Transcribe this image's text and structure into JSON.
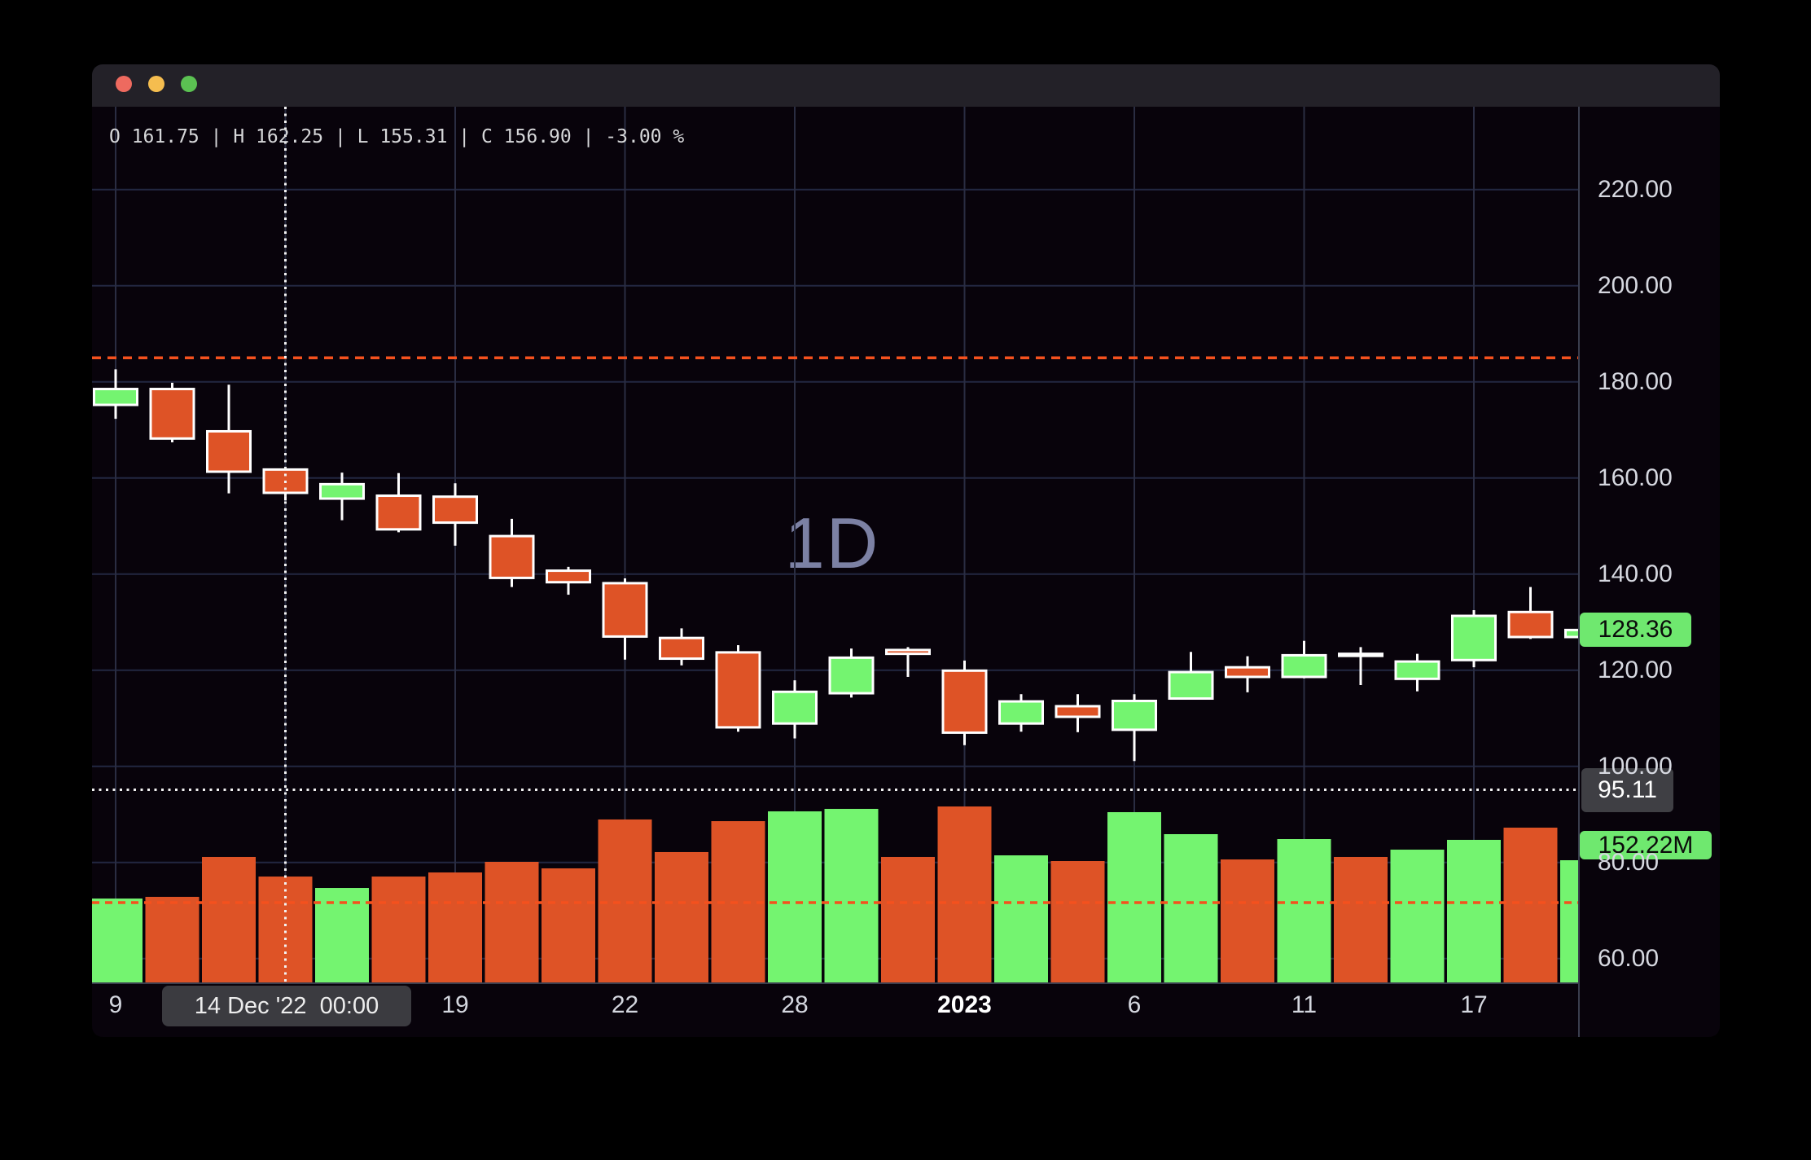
{
  "window": {
    "traffic_lights": [
      {
        "name": "close",
        "color": "#ee6a5f"
      },
      {
        "name": "minimize",
        "color": "#f5bd4f"
      },
      {
        "name": "zoom",
        "color": "#5bc152"
      }
    ]
  },
  "readout": {
    "text": "O 161.75 | H 162.25 | L 155.31 | C 156.90 | -3.00 %",
    "open": "161.75",
    "high": "162.25",
    "low": "155.31",
    "close": "156.90",
    "change_pct": "-3.00 %"
  },
  "chart_data": {
    "type": "candlestick",
    "interval_watermark": "1D",
    "grid": true,
    "y_axis": {
      "min": 60,
      "max": 220,
      "step": 20,
      "labels": [
        "220.00",
        "200.00",
        "180.00",
        "160.00",
        "140.00",
        "120.00",
        "100.00",
        "80.00",
        "60.00"
      ]
    },
    "x_axis": {
      "ticks": [
        {
          "bar": 0,
          "label": "9",
          "bold": false
        },
        {
          "bar": 6,
          "label": "19",
          "bold": false
        },
        {
          "bar": 9,
          "label": "22",
          "bold": false
        },
        {
          "bar": 12,
          "label": "28",
          "bold": false
        },
        {
          "bar": 15,
          "label": "2023",
          "bold": true
        },
        {
          "bar": 18,
          "label": "6",
          "bold": false
        },
        {
          "bar": 21,
          "label": "11",
          "bold": false
        },
        {
          "bar": 24,
          "label": "17",
          "bold": false
        }
      ],
      "gridline_bars": [
        0,
        3,
        6,
        9,
        12,
        15,
        18,
        21,
        24
      ]
    },
    "candles": [
      {
        "date": "9 Dec '22",
        "o": 175.2,
        "h": 182.6,
        "l": 172.3,
        "c": 178.5,
        "dir": "up",
        "vol_m": 104.5
      },
      {
        "date": "12 Dec '22",
        "o": 178.5,
        "h": 179.8,
        "l": 167.4,
        "c": 168.2,
        "dir": "down",
        "vol_m": 106.6
      },
      {
        "date": "13 Dec '22",
        "o": 169.7,
        "h": 179.4,
        "l": 156.8,
        "c": 161.3,
        "dir": "down",
        "vol_m": 156.3
      },
      {
        "date": "14 Dec '22",
        "o": 161.75,
        "h": 162.25,
        "l": 155.31,
        "c": 156.9,
        "dir": "down",
        "vol_m": 131.9
      },
      {
        "date": "15 Dec '22",
        "o": 155.7,
        "h": 161.1,
        "l": 151.2,
        "c": 158.7,
        "dir": "up",
        "vol_m": 117.7
      },
      {
        "date": "16 Dec '22",
        "o": 156.3,
        "h": 161.0,
        "l": 148.7,
        "c": 149.3,
        "dir": "down",
        "vol_m": 131.9
      },
      {
        "date": "19 Dec '22",
        "o": 156.1,
        "h": 158.9,
        "l": 145.9,
        "c": 150.7,
        "dir": "down",
        "vol_m": 137.0
      },
      {
        "date": "20 Dec '22",
        "o": 147.9,
        "h": 151.5,
        "l": 137.3,
        "c": 139.2,
        "dir": "down",
        "vol_m": 150.2
      },
      {
        "date": "21 Dec '22",
        "o": 140.7,
        "h": 141.5,
        "l": 135.7,
        "c": 138.3,
        "dir": "down",
        "vol_m": 142.1
      },
      {
        "date": "22 Dec '22",
        "o": 138.1,
        "h": 139.1,
        "l": 122.2,
        "c": 127.0,
        "dir": "down",
        "vol_m": 203.0
      },
      {
        "date": "23 Dec '22",
        "o": 126.7,
        "h": 128.7,
        "l": 121.0,
        "c": 122.4,
        "dir": "down",
        "vol_m": 162.4
      },
      {
        "date": "27 Dec '22",
        "o": 123.7,
        "h": 125.2,
        "l": 107.2,
        "c": 108.1,
        "dir": "down",
        "vol_m": 200.9
      },
      {
        "date": "28 Dec '22",
        "o": 108.9,
        "h": 117.9,
        "l": 105.8,
        "c": 115.5,
        "dir": "up",
        "vol_m": 213.1
      },
      {
        "date": "29 Dec '22",
        "o": 115.2,
        "h": 124.5,
        "l": 114.3,
        "c": 122.6,
        "dir": "up",
        "vol_m": 216.2
      },
      {
        "date": "30 Dec '22",
        "o": 124.2,
        "h": 124.8,
        "l": 118.6,
        "c": 123.4,
        "dir": "down",
        "vol_m": 156.3
      },
      {
        "date": "3 Jan '23",
        "o": 119.9,
        "h": 122.0,
        "l": 104.4,
        "c": 107.0,
        "dir": "down",
        "vol_m": 219.2
      },
      {
        "date": "4 Jan '23",
        "o": 108.9,
        "h": 115.0,
        "l": 107.2,
        "c": 113.5,
        "dir": "up",
        "vol_m": 158.3
      },
      {
        "date": "5 Jan '23",
        "o": 112.5,
        "h": 115.0,
        "l": 107.1,
        "c": 110.3,
        "dir": "down",
        "vol_m": 151.2
      },
      {
        "date": "6 Jan '23",
        "o": 107.6,
        "h": 115.0,
        "l": 101.1,
        "c": 113.6,
        "dir": "up",
        "vol_m": 212.1
      },
      {
        "date": "9 Jan '23",
        "o": 114.1,
        "h": 123.8,
        "l": 113.9,
        "c": 119.6,
        "dir": "up",
        "vol_m": 184.7
      },
      {
        "date": "10 Jan '23",
        "o": 120.6,
        "h": 122.9,
        "l": 115.4,
        "c": 118.6,
        "dir": "down",
        "vol_m": 153.2
      },
      {
        "date": "11 Jan '23",
        "o": 118.6,
        "h": 126.1,
        "l": 118.3,
        "c": 123.1,
        "dir": "up",
        "vol_m": 178.6
      },
      {
        "date": "12 Jan '23",
        "o": 123.4,
        "h": 124.8,
        "l": 116.9,
        "c": 123.1,
        "dir": "down",
        "vol_m": 156.3
      },
      {
        "date": "13 Jan '23",
        "o": 118.2,
        "h": 123.4,
        "l": 115.6,
        "c": 121.8,
        "dir": "up",
        "vol_m": 165.4
      },
      {
        "date": "17 Jan '23",
        "o": 122.1,
        "h": 132.5,
        "l": 120.6,
        "c": 131.3,
        "dir": "up",
        "vol_m": 177.6
      },
      {
        "date": "18 Jan '23",
        "o": 132.1,
        "h": 137.3,
        "l": 126.5,
        "c": 126.9,
        "dir": "down",
        "vol_m": 192.8
      },
      {
        "date": "19 Jan '23",
        "o": 126.9,
        "h": 128.8,
        "l": 126.7,
        "c": 128.36,
        "dir": "up",
        "vol_m": 152.22
      }
    ],
    "crosshair": {
      "bar": 3,
      "date_label": "14 Dec '22  00:00",
      "price": 95.11,
      "price_label": "95.11"
    },
    "last_price": {
      "value": 128.36,
      "label": "128.36"
    },
    "volume_label": "152.22M",
    "dashed_price_level": 185.0,
    "dashed_volume_level_m": 99.5
  },
  "colors": {
    "up": "#74f470",
    "down": "#de5326",
    "wick": "#ffffff",
    "grid_h": "#222741",
    "grid_v": "#2a2d42",
    "dashed_accent": "#f4511e",
    "crosshair": "#f2f2f2",
    "badge_green": "#6fe86f",
    "badge_gray": "#3f3f44",
    "watermark": "#7c81a4"
  }
}
